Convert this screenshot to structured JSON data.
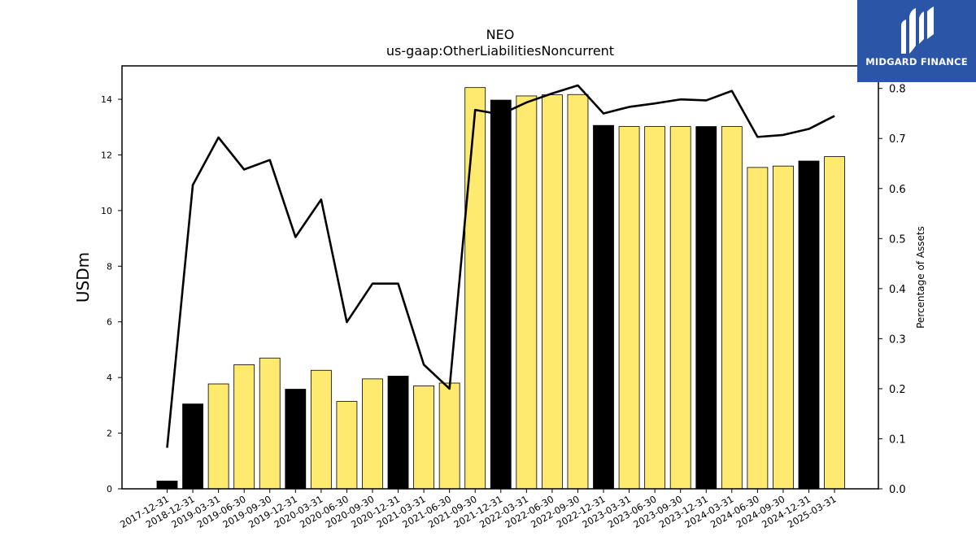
{
  "chart_data": {
    "type": "bar",
    "title": "NEO",
    "subtitle": "us-gaap:OtherLiabilitiesNoncurrent",
    "ylabel": "USDm",
    "y2label": "Percentage of Assets",
    "ylim": [
      0,
      15.2
    ],
    "y2lim": [
      0,
      0.845
    ],
    "yticks": [
      0,
      2,
      4,
      6,
      8,
      10,
      12,
      14
    ],
    "y2ticks": [
      0.0,
      0.1,
      0.2,
      0.3,
      0.4,
      0.5,
      0.6,
      0.7,
      0.8
    ],
    "categories": [
      "2017-12-31",
      "2018-12-31",
      "2019-03-31",
      "2019-06-30",
      "2019-09-30",
      "2019-12-31",
      "2020-03-31",
      "2020-06-30",
      "2020-09-30",
      "2020-12-31",
      "2021-03-31",
      "2021-06-30",
      "2021-09-30",
      "2021-12-31",
      "2022-03-31",
      "2022-06-30",
      "2022-09-30",
      "2022-12-31",
      "2023-03-31",
      "2023-06-30",
      "2023-09-30",
      "2023-12-31",
      "2024-03-31",
      "2024-06-30",
      "2024-09-30",
      "2024-12-31",
      "2025-03-31"
    ],
    "series": [
      {
        "type": "bar",
        "values": [
          0.28,
          3.05,
          3.77,
          4.46,
          4.7,
          3.58,
          4.26,
          3.14,
          3.95,
          4.05,
          3.7,
          3.8,
          14.42,
          13.97,
          14.12,
          14.16,
          14.17,
          13.06,
          13.02,
          13.02,
          13.02,
          13.02,
          13.02,
          11.55,
          11.6,
          11.78,
          11.94
        ],
        "annual_color": "#000000",
        "quarter_color": "#ffea70"
      },
      {
        "type": "line",
        "axis": "right",
        "color": "#000000",
        "values": [
          0.082,
          0.607,
          0.702,
          0.638,
          0.657,
          0.503,
          0.578,
          0.333,
          0.41,
          0.41,
          0.248,
          0.2,
          0.757,
          0.748,
          0.772,
          0.79,
          0.806,
          0.75,
          0.763,
          0.77,
          0.778,
          0.776,
          0.795,
          0.703,
          0.707,
          0.719,
          0.745
        ]
      }
    ],
    "annual_flags": [
      true,
      true,
      false,
      false,
      false,
      true,
      false,
      false,
      false,
      true,
      false,
      false,
      false,
      true,
      false,
      false,
      false,
      true,
      false,
      false,
      false,
      true,
      false,
      false,
      false,
      true,
      false
    ]
  },
  "logo": {
    "text": "MIDGARD FINANCE",
    "icon": "midgard-logo-icon"
  }
}
